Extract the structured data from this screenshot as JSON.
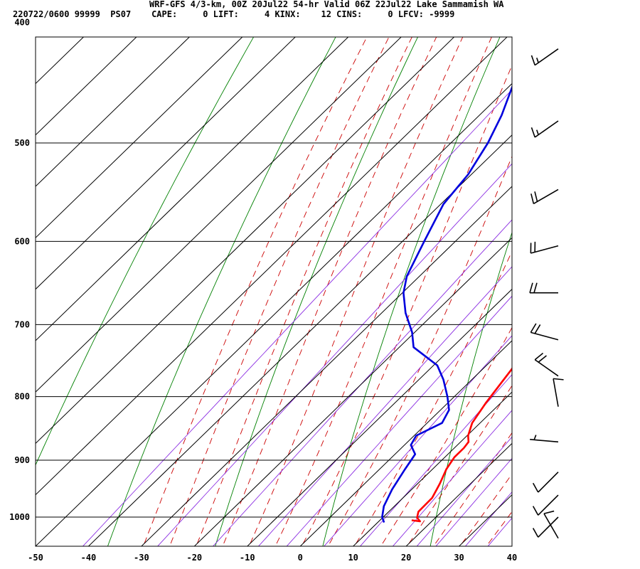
{
  "header": {
    "line1": "WRF-GFS 4/3-km, 00Z 20Jul22 54-hr Valid 06Z 22Jul22 Lake Sammamish WA",
    "line2": "220722/0600 99999  PS07    CAPE:     0 LIFT:     4 KINX:    12 CINS:     0 LFCV: -9999"
  },
  "chart_data": {
    "type": "line",
    "subtype": "skew-t log-p sounding",
    "xlabel": "",
    "ylabel": "",
    "x_ticks": [
      "-50",
      "-40",
      "-30",
      "-20",
      "-10",
      "0",
      "10",
      "20",
      "30",
      "40"
    ],
    "y_ticks": [
      "400",
      "500",
      "600",
      "700",
      "800",
      "900",
      "1000"
    ],
    "xlim": [
      -50,
      40
    ],
    "ylim_hPa": [
      1050,
      400
    ],
    "y_scale": "log",
    "grid": true,
    "series": [
      {
        "color": "#ff0000",
        "points": [
          {
            "p": 1006,
            "t": 16.0
          },
          {
            "p": 1008,
            "t": 17.8
          },
          {
            "p": 1001,
            "t": 16.5
          },
          {
            "p": 990,
            "t": 15.6
          },
          {
            "p": 965,
            "t": 15.5
          },
          {
            "p": 940,
            "t": 14.2
          },
          {
            "p": 915,
            "t": 12.6
          },
          {
            "p": 895,
            "t": 11.8
          },
          {
            "p": 880,
            "t": 11.8
          },
          {
            "p": 870,
            "t": 11.5
          },
          {
            "p": 860,
            "t": 10.2
          },
          {
            "p": 840,
            "t": 8.5
          },
          {
            "p": 810,
            "t": 7.2
          },
          {
            "p": 760,
            "t": 5.5
          },
          {
            "p": 725,
            "t": 3.7
          },
          {
            "p": 690,
            "t": 0.1
          },
          {
            "p": 660,
            "t": -2.4
          },
          {
            "p": 635,
            "t": -5.2
          },
          {
            "p": 600,
            "t": -9.0
          },
          {
            "p": 560,
            "t": -13.5
          },
          {
            "p": 520,
            "t": -18.8
          },
          {
            "p": 480,
            "t": -24.5
          },
          {
            "p": 450,
            "t": -29.3
          },
          {
            "p": 415,
            "t": -34.0
          }
        ]
      },
      {
        "color": "#0000dd",
        "points": [
          {
            "p": 1010,
            "t": 11.2
          },
          {
            "p": 1000,
            "t": 9.8
          },
          {
            "p": 980,
            "t": 8.0
          },
          {
            "p": 950,
            "t": 6.3
          },
          {
            "p": 915,
            "t": 4.8
          },
          {
            "p": 890,
            "t": 3.8
          },
          {
            "p": 875,
            "t": 1.2
          },
          {
            "p": 860,
            "t": 0.4
          },
          {
            "p": 840,
            "t": 2.8
          },
          {
            "p": 820,
            "t": 1.6
          },
          {
            "p": 800,
            "t": -1.3
          },
          {
            "p": 775,
            "t": -5.4
          },
          {
            "p": 755,
            "t": -9.3
          },
          {
            "p": 730,
            "t": -17.3
          },
          {
            "p": 710,
            "t": -20.5
          },
          {
            "p": 685,
            "t": -25.5
          },
          {
            "p": 660,
            "t": -29.8
          },
          {
            "p": 640,
            "t": -32.4
          },
          {
            "p": 600,
            "t": -35.9
          },
          {
            "p": 560,
            "t": -39.5
          },
          {
            "p": 530,
            "t": -40.6
          },
          {
            "p": 500,
            "t": -43.0
          },
          {
            "p": 475,
            "t": -45.8
          },
          {
            "p": 450,
            "t": -49.4
          },
          {
            "p": 415,
            "t": -54.0
          }
        ]
      }
    ],
    "reference_lines": {
      "dry_adiabat_color": "#008000",
      "moist_adiabat_color": "#cc0000",
      "mixing_ratio_color": "#8a2be2",
      "isobar_color": "#000000",
      "isotherm_color": "#000000"
    },
    "wind_barbs": [
      {
        "p": 420,
        "dir": 235,
        "spd": 15
      },
      {
        "p": 480,
        "dir": 235,
        "spd": 15
      },
      {
        "p": 545,
        "dir": 240,
        "spd": 20
      },
      {
        "p": 605,
        "dir": 255,
        "spd": 20
      },
      {
        "p": 660,
        "dir": 270,
        "spd": 20
      },
      {
        "p": 720,
        "dir": 285,
        "spd": 20
      },
      {
        "p": 770,
        "dir": 305,
        "spd": 20
      },
      {
        "p": 815,
        "dir": 350,
        "spd": 10
      },
      {
        "p": 870,
        "dir": 275,
        "spd": 5
      },
      {
        "p": 920,
        "dir": 225,
        "spd": 10
      },
      {
        "p": 960,
        "dir": 225,
        "spd": 10
      },
      {
        "p": 1000,
        "dir": 225,
        "spd": 10
      },
      {
        "p": 1040,
        "dir": 330,
        "spd": 10
      }
    ]
  }
}
